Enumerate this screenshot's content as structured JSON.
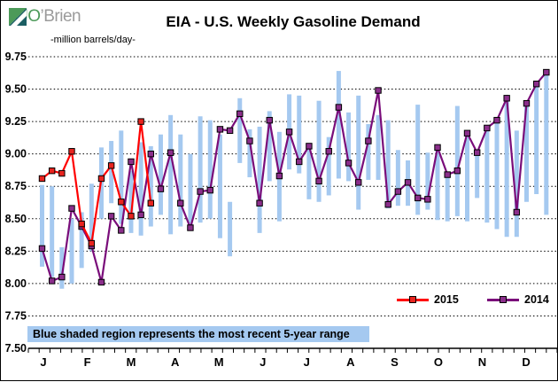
{
  "logo": {
    "text_primary": "RJO",
    "text_secondary": "’Brien"
  },
  "title": "EIA - U.S. Weekly Gasoline Demand",
  "unit_label": "-million barrels/day-",
  "note": "Blue shaded region represents the most recent 5-year range",
  "legend": {
    "first": "2015",
    "second": "2014"
  },
  "chart_data": {
    "type": "line",
    "title": "EIA - U.S. Weekly Gasoline Demand",
    "ylabel": "-million barrels/day-",
    "ylim": [
      7.5,
      9.75
    ],
    "ytick_step": 0.25,
    "yticks": [
      "9.75",
      "9.50",
      "9.25",
      "9.00",
      "8.75",
      "8.50",
      "8.25",
      "8.00",
      "7.75",
      "7.50"
    ],
    "months": [
      "J",
      "F",
      "M",
      "A",
      "M",
      "J",
      "J",
      "A",
      "S",
      "O",
      "N",
      "D"
    ],
    "weeks": 52,
    "grid": "dotted horizontal",
    "legend_position": "inside lower-right",
    "range_bars": {
      "name": "5-year range",
      "color": "#a5c9f0",
      "low": [
        8.13,
        8.05,
        7.96,
        8.0,
        8.12,
        8.25,
        8.5,
        8.62,
        8.46,
        8.39,
        8.37,
        8.44,
        8.53,
        8.38,
        8.44,
        8.43,
        8.47,
        8.5,
        8.35,
        8.21,
        8.93,
        8.82,
        8.39,
        8.79,
        8.48,
        8.88,
        8.85,
        8.65,
        8.63,
        8.68,
        8.81,
        8.79,
        8.57,
        8.8,
        8.8,
        8.58,
        8.6,
        8.6,
        8.53,
        8.57,
        8.49,
        8.48,
        8.52,
        8.48,
        8.66,
        8.47,
        8.42,
        8.36,
        8.36,
        8.63,
        8.69,
        8.53
      ],
      "high": [
        8.76,
        8.75,
        8.28,
        8.5,
        8.55,
        8.77,
        9.05,
        9.1,
        9.18,
        8.87,
        9.09,
        9.06,
        9.15,
        9.3,
        9.15,
        9.0,
        9.29,
        9.26,
        9.15,
        8.63,
        9.43,
        9.19,
        9.21,
        9.33,
        9.17,
        9.46,
        9.45,
        9.08,
        9.41,
        9.13,
        9.64,
        9.32,
        9.45,
        9.23,
        9.3,
        9.26,
        9.03,
        8.95,
        9.38,
        9.01,
        9.04,
        8.84,
        9.37,
        9.16,
        9.01,
        9.2,
        9.26,
        9.43,
        9.18,
        9.39,
        9.54,
        9.63
      ]
    },
    "series": [
      {
        "name": "2015",
        "color": "#ff0000",
        "marker_fill": "#e8241f",
        "values": [
          8.81,
          8.87,
          8.85,
          9.02,
          8.46,
          8.31,
          8.81,
          8.91,
          8.63,
          8.52,
          9.25,
          8.62
        ]
      },
      {
        "name": "2014",
        "color": "#7a0d7a",
        "marker_fill": "#8b2e8b",
        "values": [
          8.27,
          8.02,
          8.05,
          8.58,
          8.44,
          8.29,
          8.01,
          8.52,
          8.41,
          8.94,
          8.53,
          9.0,
          8.73,
          9.01,
          8.62,
          8.43,
          8.71,
          8.72,
          9.19,
          9.18,
          9.31,
          9.1,
          8.62,
          9.26,
          8.83,
          9.17,
          8.94,
          9.06,
          8.79,
          9.02,
          9.36,
          8.93,
          8.78,
          9.1,
          9.49,
          8.61,
          8.71,
          8.78,
          8.66,
          8.65,
          9.05,
          8.84,
          8.87,
          9.16,
          9.01,
          9.2,
          9.26,
          9.43,
          8.55,
          9.39,
          9.54,
          9.63
        ]
      }
    ]
  }
}
